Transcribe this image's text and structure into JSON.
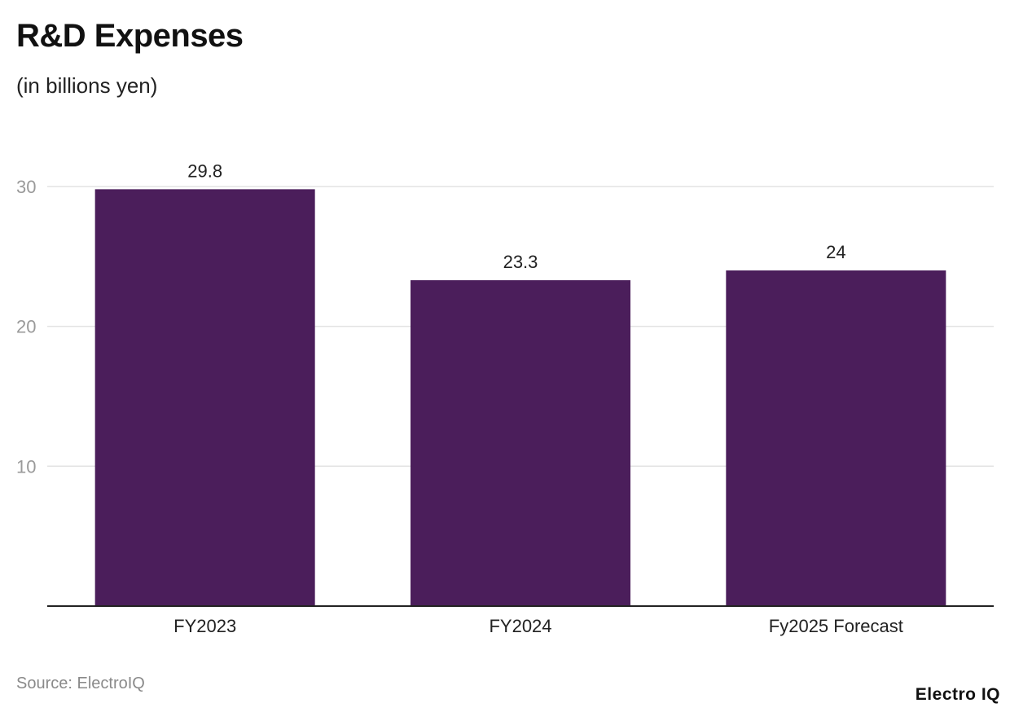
{
  "chart_data": {
    "type": "bar",
    "title": "R&D Expenses",
    "subtitle": "(in billions yen)",
    "categories": [
      "FY2023",
      "FY2024",
      "Fy2025 Forecast"
    ],
    "values": [
      29.8,
      23.3,
      24
    ],
    "data_labels": [
      "29.8",
      "23.3",
      "24"
    ],
    "yticks": [
      10,
      20,
      30
    ],
    "ylim": [
      0,
      30
    ],
    "xlabel": "",
    "ylabel": "",
    "grid": true,
    "bar_color": "#4b1e5b",
    "grid_color": "#e3e3e3",
    "axis_color": "#222222"
  },
  "footer": {
    "source": "Source: ElectroIQ",
    "brand": "Electro IQ"
  }
}
